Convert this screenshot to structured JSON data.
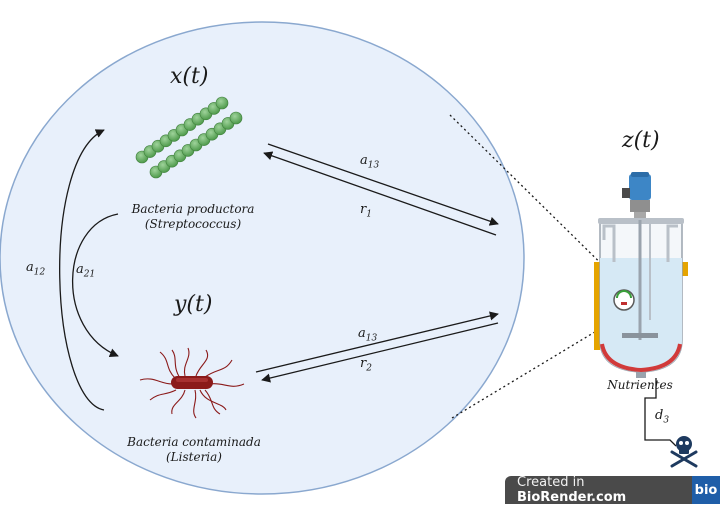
{
  "variables": {
    "x": "x(t)",
    "y": "y(t)",
    "z": "z(t)"
  },
  "captions": {
    "producer_name": "Bacteria productora",
    "producer_species": "(Streptococcus)",
    "contaminant_name": "Bacteria contaminada",
    "contaminant_species": "(Listeria)",
    "nutrients": "Nutrientes"
  },
  "rates": {
    "a12": {
      "base": "a",
      "sub": "12"
    },
    "a21": {
      "base": "a",
      "sub": "21"
    },
    "a13_top": {
      "base": "a",
      "sub": "13"
    },
    "r1": {
      "base": "r",
      "sub": "1"
    },
    "a13_bottom": {
      "base": "a",
      "sub": "13"
    },
    "r2": {
      "base": "r",
      "sub": "2"
    },
    "d3": {
      "base": "d",
      "sub": "3"
    }
  },
  "badge": {
    "prefix": "Created in ",
    "brand": "BioRender.com",
    "logo": "bio"
  },
  "colors": {
    "ellipse_fill": "#e8f0fb",
    "ellipse_stroke": "#8aa8cf",
    "streptococcus": "#6db36a",
    "listeria": "#8b1a1a",
    "reactor_liquid": "#d6e9f5",
    "reactor_jacket": "#d13a3a",
    "motor": "#3d86c6"
  }
}
